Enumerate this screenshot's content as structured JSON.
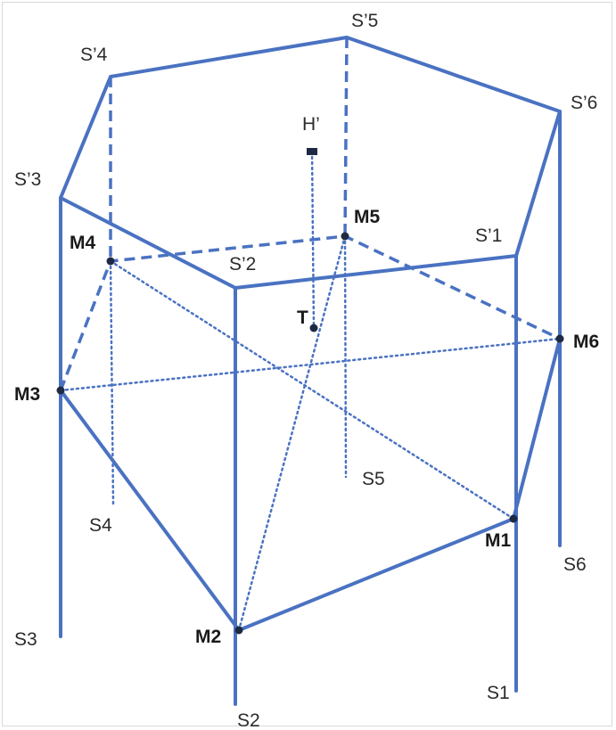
{
  "labels": {
    "s1p": "S’1",
    "s2p": "S’2",
    "s3p": "S’3",
    "s4p": "S’4",
    "s5p": "S’5",
    "s6p": "S’6",
    "s1": "S1",
    "s2": "S2",
    "s3": "S3",
    "s4": "S4",
    "s5": "S5",
    "s6": "S6",
    "m1": "M1",
    "m2": "M2",
    "m3": "M3",
    "m4": "M4",
    "m5": "M5",
    "m6": "M6",
    "t": "T",
    "hp": "H’"
  },
  "colors": {
    "edge": "#4a72c2",
    "point": "#1e2a44"
  }
}
